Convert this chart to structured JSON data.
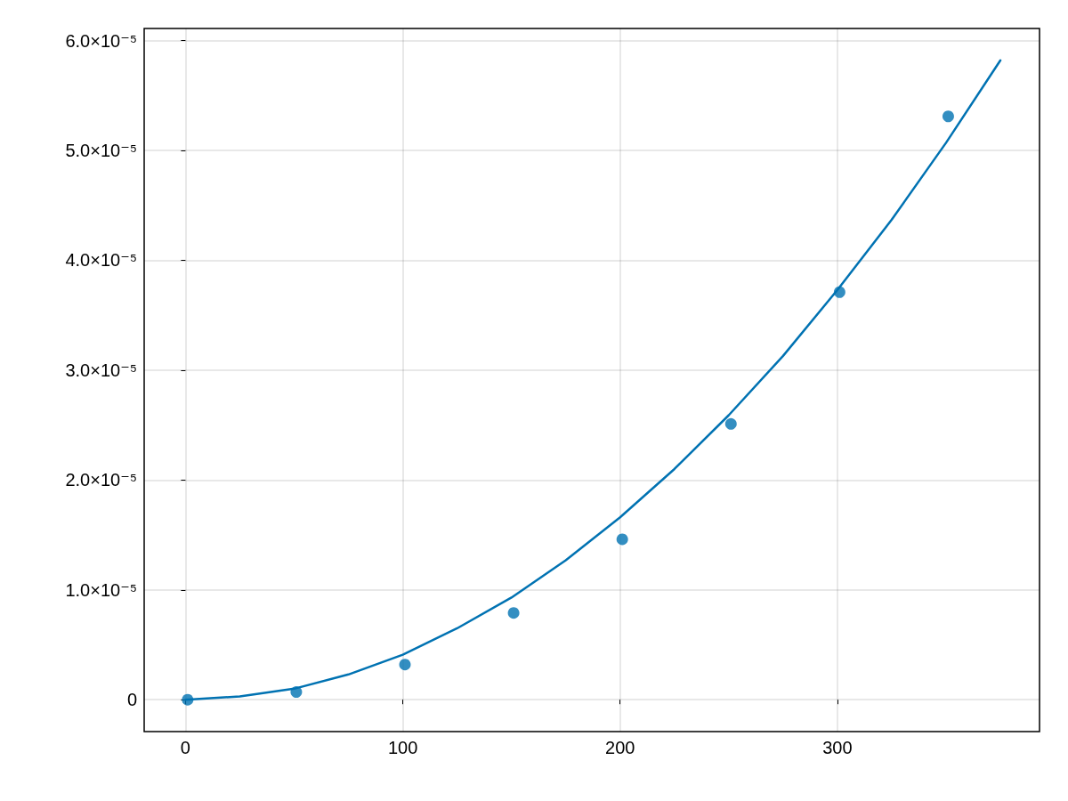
{
  "chart_data": {
    "type": "scatter",
    "xlim": [
      -19,
      393
    ],
    "xticks": [
      0,
      100,
      200,
      300
    ],
    "ylim": [
      -2.9e-06,
      6.11e-05
    ],
    "yticks": [
      0,
      {
        "value": 1e-05,
        "label": "1.0×10⁻⁵"
      },
      {
        "value": 2e-05,
        "label": "2.0×10⁻⁵"
      },
      {
        "value": 3e-05,
        "label": "3.0×10⁻⁵"
      },
      {
        "value": 4e-05,
        "label": "4.0×10⁻⁵"
      },
      {
        "value": 5e-05,
        "label": "5.0×10⁻⁵"
      },
      {
        "value": 6e-05,
        "label": "6.0×10⁻⁵"
      }
    ],
    "grid": true,
    "series": [
      {
        "color": "#0072b2",
        "marker": "circle",
        "x": [
          1,
          51,
          101,
          151,
          201,
          251,
          301,
          351
        ],
        "values": [
          0,
          7e-07,
          3.2e-06,
          7.9e-06,
          1.46e-05,
          2.51e-05,
          3.71e-05,
          5.31e-05
        ]
      },
      {
        "type": "line",
        "color": "#0072b2",
        "marker": "none",
        "line_style": "solid",
        "x": [
          0,
          25,
          50,
          75,
          100,
          125,
          150,
          175,
          200,
          225,
          250,
          275,
          300,
          325,
          350,
          375
        ],
        "values": [
          0,
          3e-07,
          1e-06,
          2.3e-06,
          4.1e-06,
          6.5e-06,
          9.3e-06,
          1.27e-05,
          1.66e-05,
          2.1e-05,
          2.59e-05,
          3.13e-05,
          3.73e-05,
          4.37e-05,
          5.07e-05,
          5.82e-05
        ]
      }
    ]
  }
}
